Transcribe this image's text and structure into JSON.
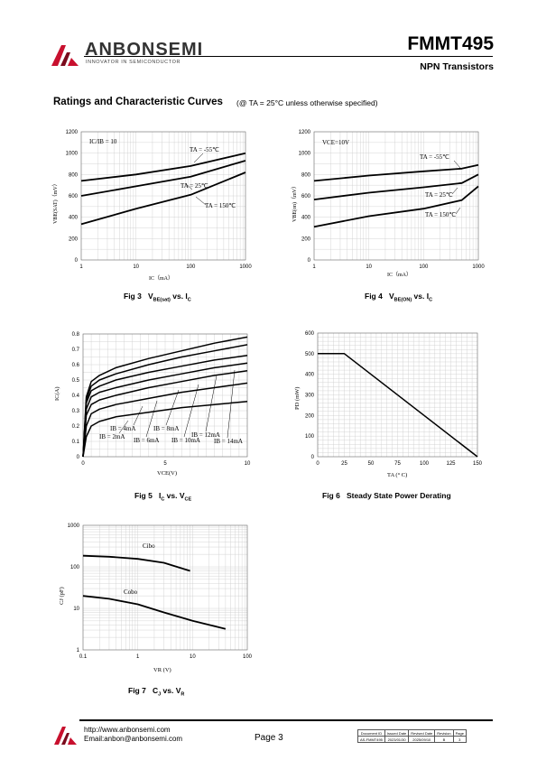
{
  "header": {
    "brand": "ANBONSEMI",
    "tagline": "INNOVATOR IN SEMICONDUCTOR",
    "part_number": "FMMT495",
    "product_type": "NPN Transistors"
  },
  "section": {
    "title": "Ratings and Characteristic Curves",
    "condition": "(@ TA = 25°C unless otherwise specified)"
  },
  "fig3": {
    "caption": {
      "prefix": "Fig 3",
      "q": "V",
      "q_sub": "BE(sat)",
      "vs": "vs. I",
      "vs_sub": "C"
    },
    "annotation": "IC/IB = 10",
    "ylabel": "VBE(SAT)（mV）",
    "xlabel": "IC（mA）",
    "yticks": [
      "0",
      "200",
      "400",
      "600",
      "800",
      "1000",
      "1200"
    ],
    "xticks": [
      "1",
      "10",
      "100",
      "1000"
    ],
    "curve_labels": [
      "TA = -55℃",
      "TA = 25℃",
      "TA = 150℃"
    ]
  },
  "fig4": {
    "caption": {
      "prefix": "Fig 4",
      "q": "V",
      "q_sub": "BE(ON)",
      "vs": "vs. I",
      "vs_sub": "C"
    },
    "annotation": "VCE=10V",
    "ylabel": "VBE(on)（mV）",
    "xlabel": "IC（mA）",
    "yticks": [
      "0",
      "200",
      "400",
      "600",
      "800",
      "1000",
      "1200"
    ],
    "xticks": [
      "1",
      "10",
      "100",
      "1000"
    ],
    "curve_labels": [
      "TA = -55℃",
      "TA = 25℃",
      "TA = 150℃"
    ]
  },
  "fig5": {
    "caption": {
      "prefix": "Fig 5",
      "q": "I",
      "q_sub": "C",
      "vs": "vs. V",
      "vs_sub": "CE"
    },
    "ylabel": "IC(A)",
    "xlabel": "VCE(V)",
    "yticks": [
      "0",
      "0.1",
      "0.2",
      "0.3",
      "0.4",
      "0.5",
      "0.6",
      "0.7",
      "0.8"
    ],
    "xticks": [
      "0",
      "5",
      "10"
    ],
    "curve_labels": [
      "IB = 2mA",
      "IB = 4mA",
      "IB = 6mA",
      "IB = 8mA",
      "IB = 10mA",
      "IB = 12mA",
      "IB = 14mA"
    ]
  },
  "fig6": {
    "caption": {
      "prefix": "Fig 6",
      "text": "Steady State Power Derating"
    },
    "ylabel": "PD (mW)",
    "xlabel": "TA (° C)",
    "yticks": [
      "0",
      "100",
      "200",
      "300",
      "400",
      "500",
      "600"
    ],
    "xticks": [
      "0",
      "25",
      "50",
      "75",
      "100",
      "125",
      "150"
    ]
  },
  "fig7": {
    "caption": {
      "prefix": "Fig 7",
      "q": "C",
      "q_sub": "J",
      "vs": "vs. V",
      "vs_sub": "R"
    },
    "ylabel": "CJ (pF)",
    "xlabel": "VR (V)",
    "yticks": [
      "1",
      "10",
      "100",
      "1000"
    ],
    "xticks": [
      "0.1",
      "1",
      "10",
      "100"
    ],
    "curve_labels": [
      "Cibo",
      "Cobo"
    ]
  },
  "chart_data": [
    {
      "type": "line",
      "title": "",
      "xscale": "log",
      "xlim": [
        1,
        1000
      ],
      "ylim": [
        0,
        1200
      ],
      "xlabel": "IC (mA)",
      "ylabel": "VBE(SAT) (mV)",
      "series": [
        {
          "name": "TA = -55℃",
          "x": [
            1,
            10,
            100,
            1000
          ],
          "y": [
            740,
            800,
            880,
            1000
          ]
        },
        {
          "name": "TA = 25℃",
          "x": [
            1,
            10,
            100,
            1000
          ],
          "y": [
            600,
            690,
            780,
            930
          ]
        },
        {
          "name": "TA = 150℃",
          "x": [
            1,
            10,
            100,
            1000
          ],
          "y": [
            335,
            480,
            610,
            820
          ]
        }
      ]
    },
    {
      "type": "line",
      "title": "",
      "xscale": "log",
      "xlim": [
        1,
        1000
      ],
      "ylim": [
        0,
        1200
      ],
      "xlabel": "IC (mA)",
      "ylabel": "VBE(on) (mV)",
      "series": [
        {
          "name": "TA = -55℃",
          "x": [
            1,
            10,
            100,
            500,
            1000
          ],
          "y": [
            740,
            790,
            830,
            855,
            890
          ]
        },
        {
          "name": "TA = 25℃",
          "x": [
            1,
            10,
            100,
            500,
            1000
          ],
          "y": [
            565,
            630,
            680,
            720,
            800
          ]
        },
        {
          "name": "TA = 150℃",
          "x": [
            1,
            10,
            100,
            500,
            1000
          ],
          "y": [
            310,
            410,
            480,
            560,
            690
          ]
        }
      ]
    },
    {
      "type": "line",
      "title": "",
      "xlim": [
        0,
        10
      ],
      "ylim": [
        0,
        0.8
      ],
      "xlabel": "VCE (V)",
      "ylabel": "IC (A)",
      "series": [
        {
          "name": "IB = 2mA",
          "x": [
            0,
            0.2,
            0.5,
            1,
            2,
            4,
            6,
            8,
            10
          ],
          "y": [
            0,
            0.13,
            0.2,
            0.23,
            0.26,
            0.29,
            0.32,
            0.34,
            0.36
          ]
        },
        {
          "name": "IB = 4mA",
          "x": [
            0,
            0.2,
            0.5,
            1,
            2,
            4,
            6,
            8,
            10
          ],
          "y": [
            0,
            0.2,
            0.28,
            0.31,
            0.34,
            0.38,
            0.42,
            0.45,
            0.48
          ]
        },
        {
          "name": "IB = 6mA",
          "x": [
            0,
            0.2,
            0.5,
            1,
            2,
            4,
            6,
            8,
            10
          ],
          "y": [
            0,
            0.27,
            0.34,
            0.37,
            0.4,
            0.45,
            0.49,
            0.53,
            0.56
          ]
        },
        {
          "name": "IB = 8mA",
          "x": [
            0,
            0.2,
            0.5,
            1,
            2,
            4,
            6,
            8,
            10
          ],
          "y": [
            0,
            0.31,
            0.39,
            0.42,
            0.45,
            0.5,
            0.54,
            0.58,
            0.61
          ]
        },
        {
          "name": "IB = 10mA",
          "x": [
            0,
            0.2,
            0.5,
            1,
            2,
            4,
            6,
            8,
            10
          ],
          "y": [
            0,
            0.35,
            0.43,
            0.46,
            0.5,
            0.55,
            0.59,
            0.63,
            0.66
          ]
        },
        {
          "name": "IB = 12mA",
          "x": [
            0,
            0.2,
            0.5,
            1,
            2,
            4,
            6,
            8,
            10
          ],
          "y": [
            0,
            0.37,
            0.46,
            0.5,
            0.54,
            0.6,
            0.65,
            0.69,
            0.73
          ]
        },
        {
          "name": "IB = 14mA",
          "x": [
            0,
            0.2,
            0.5,
            1,
            2,
            4,
            6,
            8,
            10
          ],
          "y": [
            0,
            0.39,
            0.49,
            0.53,
            0.58,
            0.64,
            0.69,
            0.74,
            0.78
          ]
        }
      ]
    },
    {
      "type": "line",
      "title": "",
      "xlim": [
        0,
        150
      ],
      "ylim": [
        0,
        600
      ],
      "xlabel": "TA (° C)",
      "ylabel": "PD (mW)",
      "series": [
        {
          "name": "",
          "x": [
            0,
            25,
            150
          ],
          "y": [
            500,
            500,
            0
          ]
        }
      ]
    },
    {
      "type": "line",
      "title": "",
      "xscale": "log",
      "yscale": "log",
      "xlim": [
        0.1,
        100
      ],
      "ylim": [
        1,
        1000
      ],
      "xlabel": "VR (V)",
      "ylabel": "CJ (pF)",
      "series": [
        {
          "name": "Cibo",
          "x": [
            0.1,
            0.3,
            1,
            3,
            9
          ],
          "y": [
            185,
            175,
            155,
            125,
            80
          ]
        },
        {
          "name": "Cobo",
          "x": [
            0.1,
            0.3,
            1,
            3,
            10,
            40
          ],
          "y": [
            20,
            17,
            12.5,
            8,
            5,
            3.2
          ]
        }
      ]
    }
  ],
  "footer": {
    "url": "http://www.anbonsemi.com",
    "email": "Email:anbon@anbonsemi.com",
    "page": "Page 3",
    "doc_table": {
      "headers": [
        "Document ID",
        "Issued Date",
        "Revised Date",
        "Revision",
        "Page"
      ],
      "values": [
        "AS-FMMT495",
        "2023/01/30",
        "2025/09/10",
        "B",
        "3"
      ]
    }
  },
  "colors": {
    "logo_red": "#c8102e",
    "ink": "#000000",
    "grid": "#cccccc"
  }
}
